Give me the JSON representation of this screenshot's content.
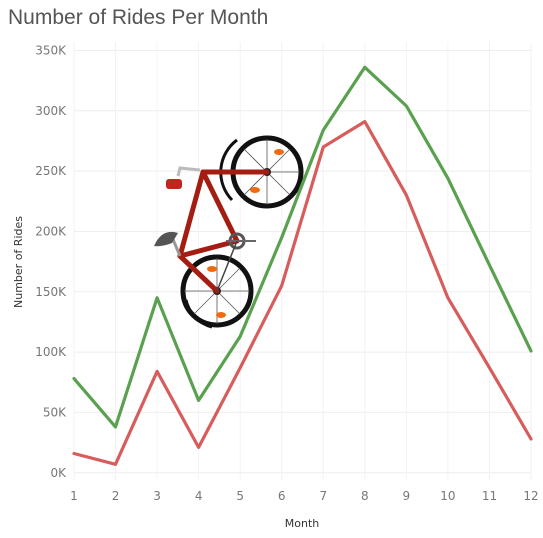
{
  "chart_data": {
    "type": "line",
    "title": "Number of Rides Per Month",
    "xlabel": "Month",
    "ylabel": "Number of Rides",
    "x": [
      1,
      2,
      3,
      4,
      5,
      6,
      7,
      8,
      9,
      10,
      11,
      12
    ],
    "x_tick_labels": [
      "1",
      "2",
      "3",
      "4",
      "5",
      "6",
      "7",
      "8",
      "9",
      "10",
      "11",
      "12"
    ],
    "y_ticks": [
      0,
      50000,
      100000,
      150000,
      200000,
      250000,
      300000,
      350000
    ],
    "y_tick_labels": [
      "0K",
      "50K",
      "100K",
      "150K",
      "200K",
      "250K",
      "300K",
      "350K"
    ],
    "xlim": [
      1,
      12
    ],
    "ylim": [
      -6000,
      357000
    ],
    "grid": true,
    "series": [
      {
        "values": [
          78000,
          38000,
          145000,
          60000,
          113000,
          195000,
          284000,
          336000,
          304000,
          244000,
          172000,
          101000
        ],
        "color": "#59a14f"
      },
      {
        "values": [
          16000,
          7000,
          84000,
          21000,
          87000,
          155000,
          270000,
          291000,
          230000,
          145000,
          87000,
          28000
        ],
        "color": "#d75c5c"
      }
    ],
    "decoration": "bicycle-illustration"
  }
}
